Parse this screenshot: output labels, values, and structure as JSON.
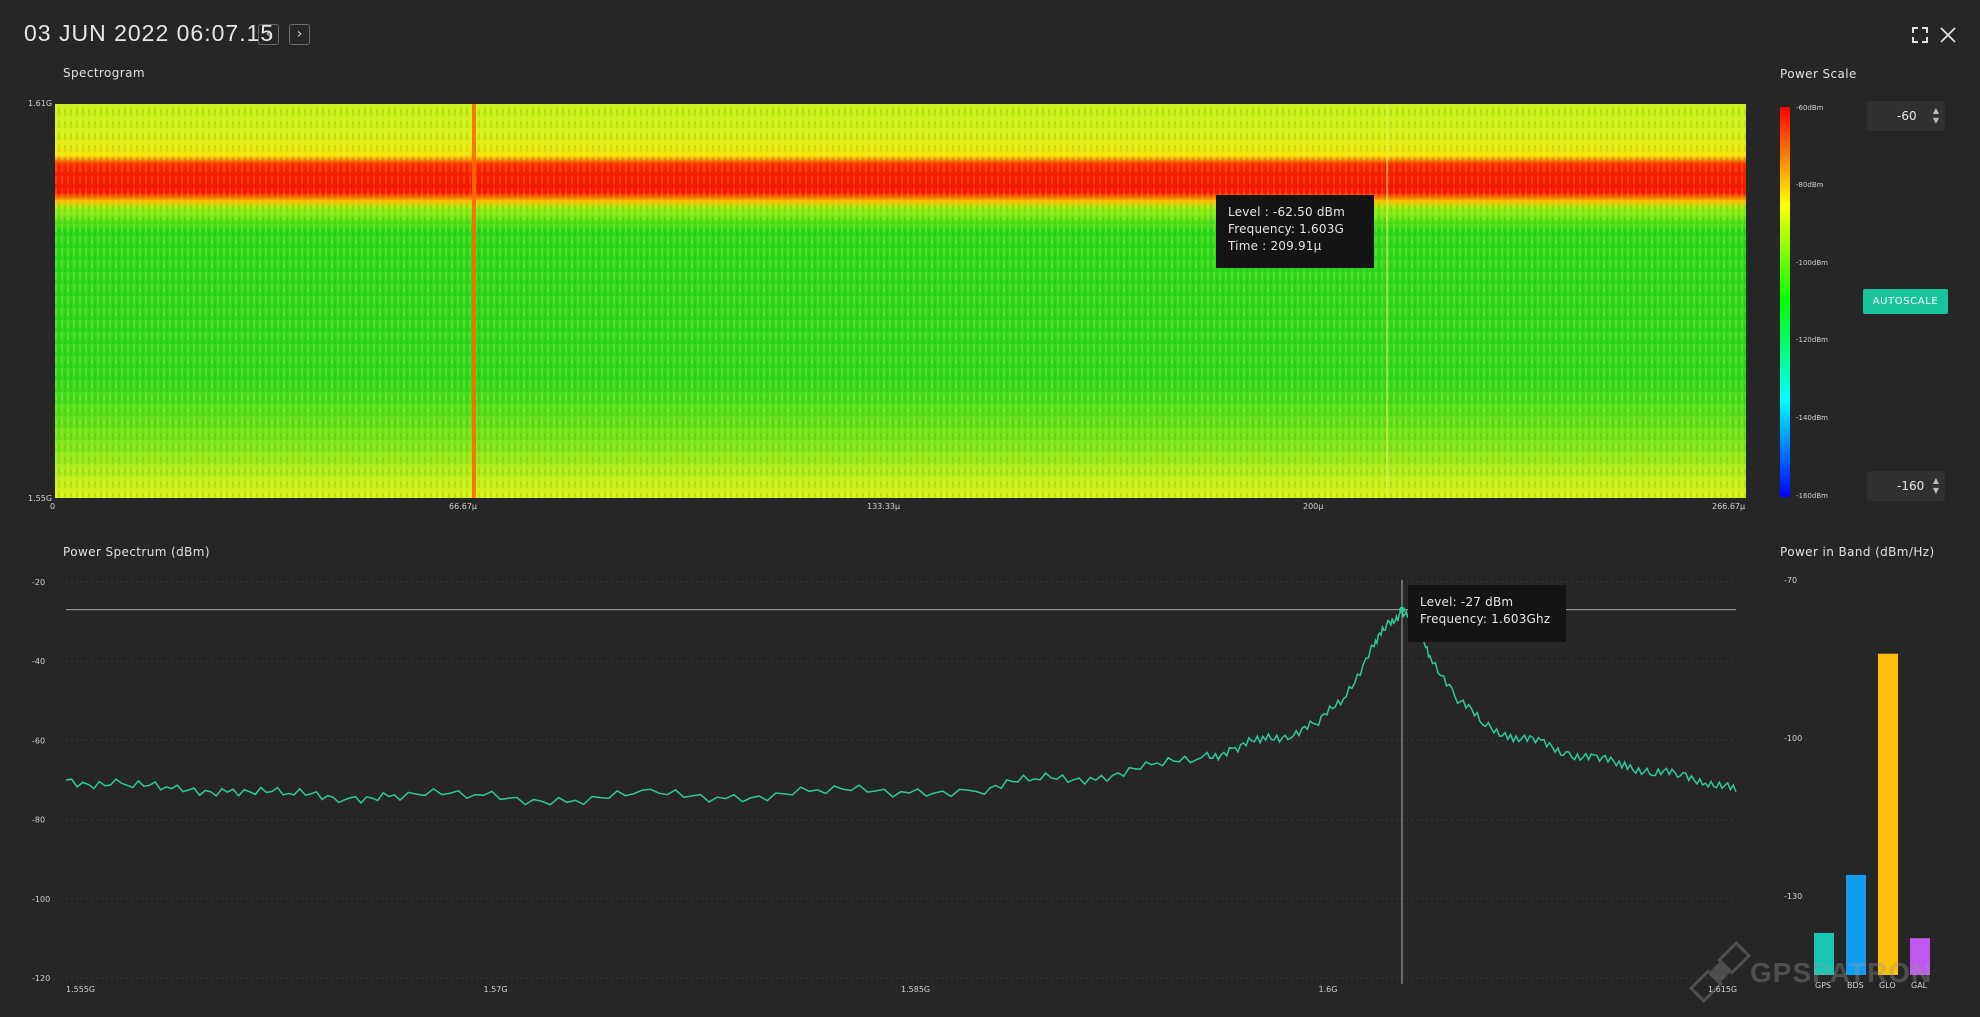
{
  "header": {
    "title": "03 JUN 2022 06:07.15",
    "prev_icon": "chevron-left-icon",
    "next_icon": "chevron-right-icon",
    "fullscreen_icon": "fullscreen-icon",
    "close_icon": "close-icon"
  },
  "spectrogram": {
    "title": "Spectrogram",
    "y_top": "1.61G",
    "y_bottom": "1.55G",
    "x_ticks": [
      "0",
      "66.67μ",
      "133.33μ",
      "200μ",
      "266.67μ"
    ],
    "tooltip": {
      "level": "Level : -62.50 dBm",
      "frequency": "Frequency: 1.603G",
      "time": "Time : 209.91μ"
    }
  },
  "power_scale": {
    "title": "Power Scale",
    "labels": [
      "-60dBm",
      "-80dBm",
      "-100dBm",
      "-120dBm",
      "-140dBm",
      "-160dBm"
    ],
    "max_value": "-60",
    "min_value": "-160",
    "autoscale_label": "AUTOSCALE",
    "colors": [
      "#ff0000",
      "#ffff00",
      "#00ff00",
      "#00ffff",
      "#0000ff"
    ]
  },
  "power_spectrum": {
    "title": "Power Spectrum (dBm)",
    "tooltip": {
      "level": "Level: -27 dBm",
      "frequency": "Frequency: 1.603Ghz"
    }
  },
  "power_in_band": {
    "title": "Power in Band (dBm/Hz)"
  },
  "watermark": "GPSPATRON",
  "chart_data": [
    {
      "type": "line",
      "title": "Power Spectrum (dBm)",
      "color": "#2ec99a",
      "xlim": [
        1.555,
        1.615
      ],
      "ylim": [
        -120,
        -20
      ],
      "x_ticks": [
        "1.555G",
        "1.57G",
        "1.585G",
        "1.6G",
        "1.615G"
      ],
      "y_ticks": [
        "-20",
        "-40",
        "-60",
        "-80",
        "-100",
        "-120"
      ],
      "x": [
        1.555,
        1.557,
        1.559,
        1.561,
        1.563,
        1.565,
        1.567,
        1.57,
        1.573,
        1.576,
        1.579,
        1.582,
        1.585,
        1.588,
        1.59,
        1.592,
        1.594,
        1.596,
        1.597,
        1.598,
        1.599,
        1.6,
        1.601,
        1.602,
        1.6025,
        1.603,
        1.6035,
        1.604,
        1.605,
        1.606,
        1.607,
        1.608,
        1.609,
        1.61,
        1.611,
        1.612,
        1.613,
        1.614,
        1.615
      ],
      "y": [
        -70,
        -71,
        -73,
        -72,
        -74,
        -74,
        -74,
        -74,
        -75,
        -74,
        -74,
        -73,
        -73,
        -72,
        -70,
        -69,
        -67,
        -64,
        -62,
        -60,
        -58,
        -56,
        -48,
        -36,
        -31,
        -27,
        -30,
        -38,
        -50,
        -56,
        -59,
        -61,
        -63,
        -65,
        -66,
        -68,
        -69,
        -70,
        -73
      ],
      "crosshair_x": 1.603,
      "crosshair_y": -27
    },
    {
      "type": "bar",
      "title": "Power in Band (dBm/Hz)",
      "categories": [
        "GPS",
        "BDS",
        "GLO",
        "GAL"
      ],
      "values": [
        -137,
        -126,
        -84,
        -138
      ],
      "colors": [
        "#14c8b4",
        "#119cf0",
        "#fcbf0a",
        "#c058ee"
      ],
      "ylim": [
        -145,
        -70
      ],
      "y_ticks": [
        "-70",
        "-100",
        "-130"
      ]
    }
  ]
}
